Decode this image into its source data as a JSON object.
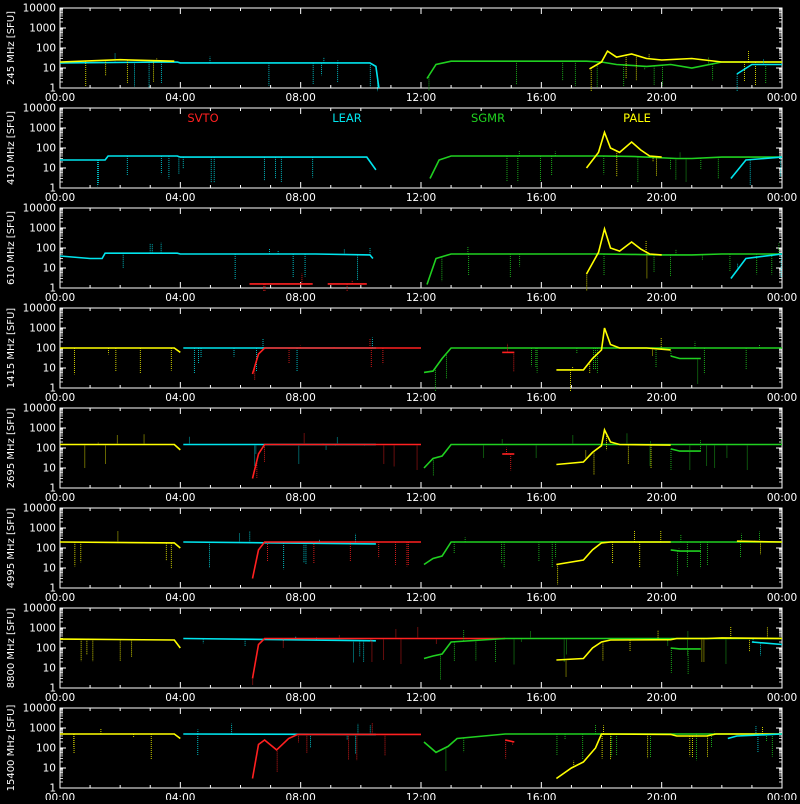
{
  "chart_data": {
    "type": "line",
    "x_ticks": [
      "00:00",
      "04:00",
      "08:00",
      "12:00",
      "16:00",
      "20:00",
      "00:00"
    ],
    "y_ticks": [
      "1",
      "10",
      "100",
      "1000",
      "10000"
    ],
    "ylim": [
      1,
      10000
    ],
    "y_scale": "log",
    "xlim_hours": [
      0,
      24
    ],
    "stations": [
      {
        "name": "SVTO",
        "color": "#ff2020"
      },
      {
        "name": "LEAR",
        "color": "#00e5ee"
      },
      {
        "name": "SGMR",
        "color": "#20d020"
      },
      {
        "name": "PALE",
        "color": "#ffff00"
      }
    ],
    "panels": [
      {
        "ylabel": "245 MHz [SFU]",
        "base": 18,
        "segments": [
          {
            "station": "LEAR",
            "x": [
              0,
              3.9,
              4.0,
              10.3,
              10.5,
              10.6
            ],
            "y": [
              18,
              20,
              18,
              18,
              12,
              1
            ]
          },
          {
            "station": "PALE",
            "x": [
              0,
              2,
              3.8
            ],
            "y": [
              20,
              26,
              22
            ]
          },
          {
            "station": "SGMR",
            "x": [
              12.2,
              12.5,
              13,
              17,
              17.5,
              18,
              18.5,
              19.5,
              20.3,
              21,
              22,
              24
            ],
            "y": [
              3,
              15,
              22,
              22,
              22,
              20,
              15,
              12,
              15,
              10,
              20,
              20
            ]
          },
          {
            "station": "PALE",
            "x": [
              17.6,
              18.0,
              18.2,
              18.5,
              19,
              19.5,
              20,
              21,
              22,
              24
            ],
            "y": [
              9,
              20,
              70,
              35,
              50,
              30,
              25,
              30,
              20,
              20
            ]
          },
          {
            "station": "LEAR",
            "x": [
              22.5,
              23,
              24
            ],
            "y": [
              5,
              15,
              15
            ]
          }
        ]
      },
      {
        "ylabel": "410 MHz [SFU]",
        "base": 40,
        "segments": [
          {
            "station": "LEAR",
            "x": [
              0,
              1.5,
              1.6,
              3.9,
              4.0,
              10.2,
              10.5
            ],
            "y": [
              25,
              25,
              40,
              40,
              35,
              35,
              8
            ]
          },
          {
            "station": "SGMR",
            "x": [
              12.3,
              12.6,
              13,
              17,
              18,
              19,
              20.5,
              21,
              22,
              24
            ],
            "y": [
              3,
              25,
              40,
              40,
              40,
              38,
              30,
              30,
              35,
              35
            ]
          },
          {
            "station": "PALE",
            "x": [
              17.5,
              17.9,
              18.1,
              18.3,
              18.6,
              19,
              19.3,
              19.6,
              20
            ],
            "y": [
              10,
              60,
              600,
              100,
              60,
              200,
              80,
              40,
              35
            ]
          },
          {
            "station": "LEAR",
            "x": [
              22.3,
              22.8,
              24
            ],
            "y": [
              3,
              25,
              35
            ]
          }
        ]
      },
      {
        "ylabel": "610 MHz [SFU]",
        "base": 55,
        "segments": [
          {
            "station": "LEAR",
            "x": [
              0,
              1,
              1.4,
              1.5,
              3.9,
              4.0,
              8.5,
              10.3,
              10.4
            ],
            "y": [
              40,
              30,
              30,
              55,
              55,
              50,
              50,
              45,
              30
            ]
          },
          {
            "station": "SVTO",
            "x": [
              6.3,
              8.4
            ],
            "y": [
              1.6,
              1.6
            ]
          },
          {
            "station": "SVTO",
            "x": [
              8.9,
              10.2
            ],
            "y": [
              1.6,
              1.6
            ]
          },
          {
            "station": "SGMR",
            "x": [
              12.2,
              12.5,
              13,
              17,
              18,
              19,
              20,
              21,
              22,
              24
            ],
            "y": [
              1.5,
              30,
              50,
              50,
              50,
              48,
              45,
              45,
              50,
              50
            ]
          },
          {
            "station": "PALE",
            "x": [
              17.5,
              17.9,
              18.1,
              18.3,
              18.6,
              19,
              19.3,
              19.6,
              20
            ],
            "y": [
              5,
              60,
              900,
              100,
              70,
              200,
              90,
              50,
              45
            ]
          },
          {
            "station": "LEAR",
            "x": [
              22.3,
              22.8,
              24
            ],
            "y": [
              3,
              30,
              50
            ]
          }
        ]
      },
      {
        "ylabel": "1415 MHz [SFU]",
        "base": 100,
        "segments": [
          {
            "station": "PALE",
            "x": [
              0,
              3.8,
              4.0
            ],
            "y": [
              100,
              100,
              60
            ]
          },
          {
            "station": "LEAR",
            "x": [
              4.1,
              10.5
            ],
            "y": [
              100,
              100
            ]
          },
          {
            "station": "SVTO",
            "x": [
              6.4,
              6.6,
              6.8,
              10.5,
              12.0
            ],
            "y": [
              5,
              50,
              100,
              100,
              100
            ]
          },
          {
            "station": "SGMR",
            "x": [
              12.1,
              12.4,
              12.7,
              13,
              24
            ],
            "y": [
              6,
              7,
              30,
              100,
              100
            ]
          },
          {
            "station": "SVTO",
            "x": [
              14.7,
              15.1
            ],
            "y": [
              60,
              60
            ]
          },
          {
            "station": "PALE",
            "x": [
              16.5,
              17.4,
              17.7,
              18.0,
              18.1,
              18.3,
              18.6,
              19.5,
              20.3
            ],
            "y": [
              8,
              8,
              30,
              80,
              1000,
              150,
              100,
              100,
              80
            ]
          },
          {
            "station": "SGMR",
            "x": [
              20.3,
              20.6,
              21.3
            ],
            "y": [
              40,
              30,
              30
            ]
          }
        ]
      },
      {
        "ylabel": "2695 MHz [SFU]",
        "base": 150,
        "segments": [
          {
            "station": "PALE",
            "x": [
              0,
              3.8,
              4.0
            ],
            "y": [
              150,
              150,
              80
            ]
          },
          {
            "station": "LEAR",
            "x": [
              4.1,
              10.5
            ],
            "y": [
              150,
              150
            ]
          },
          {
            "station": "SVTO",
            "x": [
              6.4,
              6.6,
              6.8,
              10.5,
              12.0
            ],
            "y": [
              3,
              50,
              150,
              150,
              150
            ]
          },
          {
            "station": "SGMR",
            "x": [
              12.1,
              12.4,
              12.7,
              13,
              24
            ],
            "y": [
              10,
              30,
              40,
              150,
              150
            ]
          },
          {
            "station": "SVTO",
            "x": [
              14.7,
              15.1
            ],
            "y": [
              50,
              50
            ]
          },
          {
            "station": "PALE",
            "x": [
              16.5,
              17.4,
              17.7,
              18.0,
              18.1,
              18.3,
              18.6,
              20.3
            ],
            "y": [
              15,
              20,
              60,
              130,
              800,
              200,
              150,
              140
            ]
          },
          {
            "station": "SGMR",
            "x": [
              20.3,
              20.6,
              21.3
            ],
            "y": [
              90,
              70,
              70
            ]
          }
        ]
      },
      {
        "ylabel": "4995 MHz [SFU]",
        "base": 200,
        "segments": [
          {
            "station": "PALE",
            "x": [
              0,
              3.8,
              4.0
            ],
            "y": [
              200,
              180,
              100
            ]
          },
          {
            "station": "LEAR",
            "x": [
              4.1,
              10.5
            ],
            "y": [
              200,
              160
            ]
          },
          {
            "station": "SVTO",
            "x": [
              6.4,
              6.6,
              6.8,
              10.5,
              12.0
            ],
            "y": [
              3,
              80,
              200,
              200,
              200
            ]
          },
          {
            "station": "SGMR",
            "x": [
              12.1,
              12.4,
              12.7,
              13,
              24
            ],
            "y": [
              15,
              30,
              40,
              200,
              200
            ]
          },
          {
            "station": "PALE",
            "x": [
              16.5,
              17.4,
              17.7,
              18.0,
              18.3,
              20.3
            ],
            "y": [
              15,
              25,
              80,
              180,
              200,
              200
            ]
          },
          {
            "station": "SGMR",
            "x": [
              20.3,
              20.6,
              21.3
            ],
            "y": [
              80,
              70,
              70
            ]
          },
          {
            "station": "PALE",
            "x": [
              22.5,
              24
            ],
            "y": [
              220,
              200
            ]
          }
        ]
      },
      {
        "ylabel": "8800 MHz [SFU]",
        "base": 300,
        "segments": [
          {
            "station": "PALE",
            "x": [
              0,
              3.8,
              4.0
            ],
            "y": [
              280,
              250,
              100
            ]
          },
          {
            "station": "LEAR",
            "x": [
              4.1,
              10.5
            ],
            "y": [
              300,
              230
            ]
          },
          {
            "station": "SVTO",
            "x": [
              6.4,
              6.6,
              6.8,
              10.5,
              14.8
            ],
            "y": [
              3,
              150,
              300,
              300,
              300
            ]
          },
          {
            "station": "SGMR",
            "x": [
              12.1,
              12.4,
              12.7,
              13,
              14.8,
              24
            ],
            "y": [
              30,
              40,
              50,
              200,
              300,
              300
            ]
          },
          {
            "station": "PALE",
            "x": [
              16.5,
              17.4,
              17.7,
              18.0,
              18.3,
              20.3,
              20.5,
              21.5,
              22,
              24
            ],
            "y": [
              25,
              30,
              100,
              200,
              250,
              260,
              300,
              300,
              320,
              300
            ]
          },
          {
            "station": "SGMR",
            "x": [
              20.3,
              20.6,
              21.3
            ],
            "y": [
              100,
              90,
              90
            ]
          },
          {
            "station": "LEAR",
            "x": [
              23,
              24
            ],
            "y": [
              200,
              150
            ]
          }
        ]
      },
      {
        "ylabel": "15400 MHz [SFU]",
        "base": 500,
        "segments": [
          {
            "station": "PALE",
            "x": [
              0,
              3.8,
              4.0
            ],
            "y": [
              500,
              500,
              300
            ]
          },
          {
            "station": "LEAR",
            "x": [
              4.1,
              10.5
            ],
            "y": [
              500,
              480
            ]
          },
          {
            "station": "SVTO",
            "x": [
              6.4,
              6.6,
              6.8,
              7.2,
              7.6,
              7.9,
              10.5,
              12.0
            ],
            "y": [
              3,
              150,
              250,
              80,
              300,
              480,
              480,
              480
            ]
          },
          {
            "station": "SGMR",
            "x": [
              12.1,
              12.5,
              12.9,
              13.2,
              14.8,
              24
            ],
            "y": [
              200,
              60,
              120,
              300,
              500,
              500
            ]
          },
          {
            "station": "SVTO",
            "x": [
              14.8,
              15.1
            ],
            "y": [
              250,
              200
            ]
          },
          {
            "station": "PALE",
            "x": [
              16.5,
              17.0,
              17.4,
              17.8,
              18.0,
              20.3,
              20.5,
              21.5,
              21.8,
              24
            ],
            "y": [
              3,
              10,
              20,
              100,
              500,
              480,
              400,
              400,
              500,
              500
            ]
          },
          {
            "station": "LEAR",
            "x": [
              22.2,
              22.5,
              24
            ],
            "y": [
              300,
              400,
              500
            ]
          }
        ]
      }
    ]
  }
}
